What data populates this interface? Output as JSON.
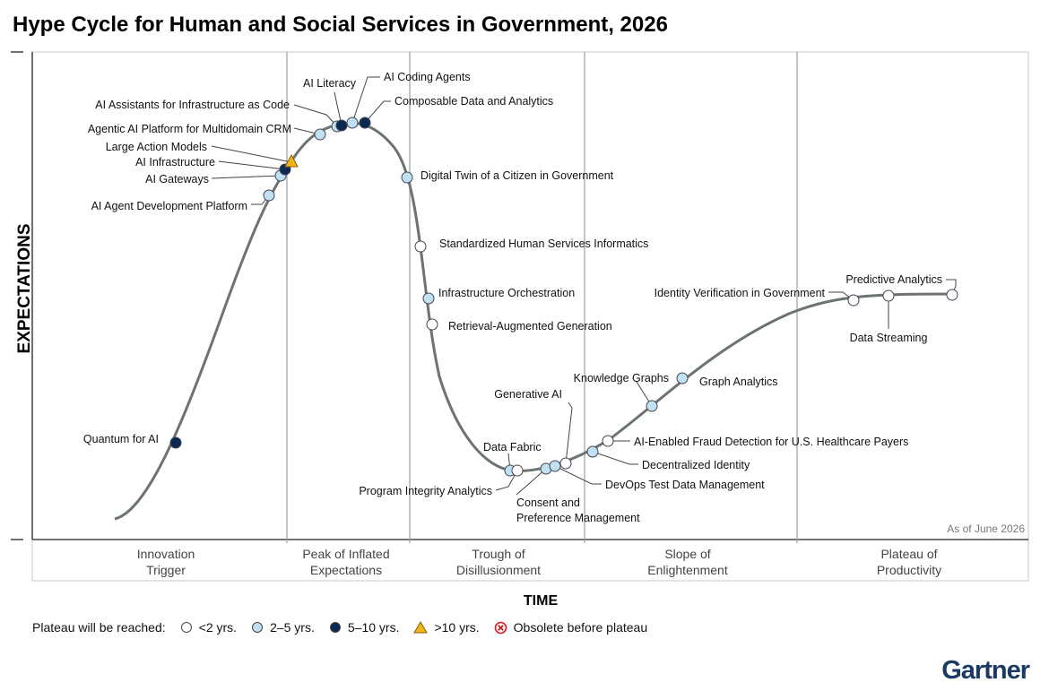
{
  "title": "Hype Cycle for Human and Social Services in Government, 2026",
  "chart_data": {
    "type": "hype-cycle",
    "ylabel": "EXPECTATIONS",
    "xlabel": "TIME",
    "as_of": "As of June 2026",
    "phases": [
      {
        "line1": "Innovation",
        "line2": "Trigger"
      },
      {
        "line1": "Peak of Inflated",
        "line2": "Expectations"
      },
      {
        "line1": "Trough of",
        "line2": "Disillusionment"
      },
      {
        "line1": "Slope of",
        "line2": "Enlightenment"
      },
      {
        "line1": "Plateau of",
        "line2": "Productivity"
      }
    ],
    "points": [
      {
        "name": "Quantum for AI",
        "phase": "Innovation Trigger",
        "plateau": "5-10 yrs."
      },
      {
        "name": "AI Agent Development Platform",
        "phase": "Innovation Trigger",
        "plateau": "2-5 yrs."
      },
      {
        "name": "AI Gateways",
        "phase": "Innovation Trigger",
        "plateau": "2-5 yrs."
      },
      {
        "name": "AI Infrastructure",
        "phase": "Innovation Trigger",
        "plateau": "5-10 yrs."
      },
      {
        "name": "Large Action Models",
        "phase": "Peak of Inflated Expectations",
        "plateau": ">10 yrs."
      },
      {
        "name": "Agentic AI Platform for Multidomain CRM",
        "phase": "Peak of Inflated Expectations",
        "plateau": "2-5 yrs."
      },
      {
        "name": "AI Assistants for Infrastructure as Code",
        "phase": "Peak of Inflated Expectations",
        "plateau": "2-5 yrs."
      },
      {
        "name": "AI Literacy",
        "phase": "Peak of Inflated Expectations",
        "plateau": "5-10 yrs."
      },
      {
        "name": "AI Coding Agents",
        "phase": "Peak of Inflated Expectations",
        "plateau": "2-5 yrs."
      },
      {
        "name": "Composable Data and Analytics",
        "phase": "Peak of Inflated Expectations",
        "plateau": "5-10 yrs."
      },
      {
        "name": "Digital Twin of a Citizen in Government",
        "phase": "Peak of Inflated Expectations",
        "plateau": "2-5 yrs."
      },
      {
        "name": "Standardized Human Services Informatics",
        "phase": "Trough of Disillusionment",
        "plateau": "<2 yrs."
      },
      {
        "name": "Infrastructure Orchestration",
        "phase": "Trough of Disillusionment",
        "plateau": "2-5 yrs."
      },
      {
        "name": "Retrieval-Augmented Generation",
        "phase": "Trough of Disillusionment",
        "plateau": "<2 yrs."
      },
      {
        "name": "Data Fabric",
        "phase": "Trough of Disillusionment",
        "plateau": "2-5 yrs."
      },
      {
        "name": "Program Integrity Analytics",
        "phase": "Trough of Disillusionment",
        "plateau": "<2 yrs."
      },
      {
        "name": "Consent and Preference Management",
        "phase": "Trough of Disillusionment",
        "plateau": "2-5 yrs."
      },
      {
        "name": "DevOps Test Data Management",
        "phase": "Trough of Disillusionment",
        "plateau": "2-5 yrs."
      },
      {
        "name": "Generative AI",
        "phase": "Trough of Disillusionment",
        "plateau": "<2 yrs."
      },
      {
        "name": "Decentralized Identity",
        "phase": "Slope of Enlightenment",
        "plateau": "2-5 yrs."
      },
      {
        "name": "AI-Enabled Fraud Detection for U.S. Healthcare Payers",
        "phase": "Slope of Enlightenment",
        "plateau": "<2 yrs."
      },
      {
        "name": "Knowledge Graphs",
        "phase": "Slope of Enlightenment",
        "plateau": "2-5 yrs."
      },
      {
        "name": "Graph Analytics",
        "phase": "Slope of Enlightenment",
        "plateau": "2-5 yrs."
      },
      {
        "name": "Identity Verification in Government",
        "phase": "Slope of Enlightenment",
        "plateau": "<2 yrs."
      },
      {
        "name": "Data Streaming",
        "phase": "Slope of Enlightenment",
        "plateau": "<2 yrs."
      },
      {
        "name": "Predictive Analytics",
        "phase": "Slope of Enlightenment",
        "plateau": "<2 yrs."
      }
    ],
    "legend": {
      "label": "Plateau will be reached:",
      "items": [
        {
          "label": "<2 yrs.",
          "fill": "#ffffff",
          "shape": "circle"
        },
        {
          "label": "2–5 yrs.",
          "fill": "#bfe1f1",
          "shape": "circle"
        },
        {
          "label": "5–10 yrs.",
          "fill": "#0b2a52",
          "shape": "circle"
        },
        {
          "label": ">10 yrs.",
          "fill": "#f2b21b",
          "shape": "triangle"
        },
        {
          "label": "Obsolete before plateau",
          "fill": "#d71920",
          "shape": "x-circle"
        }
      ]
    }
  },
  "brand": "Gartner",
  "colors": {
    "curve": "#6c7472",
    "lt2": "#ffffff",
    "y2to5": "#bfe1f1",
    "y5to10": "#0b2a52",
    "gt10": "#f2b21b",
    "obsolete": "#d71920",
    "brand": "#1a3a63"
  }
}
